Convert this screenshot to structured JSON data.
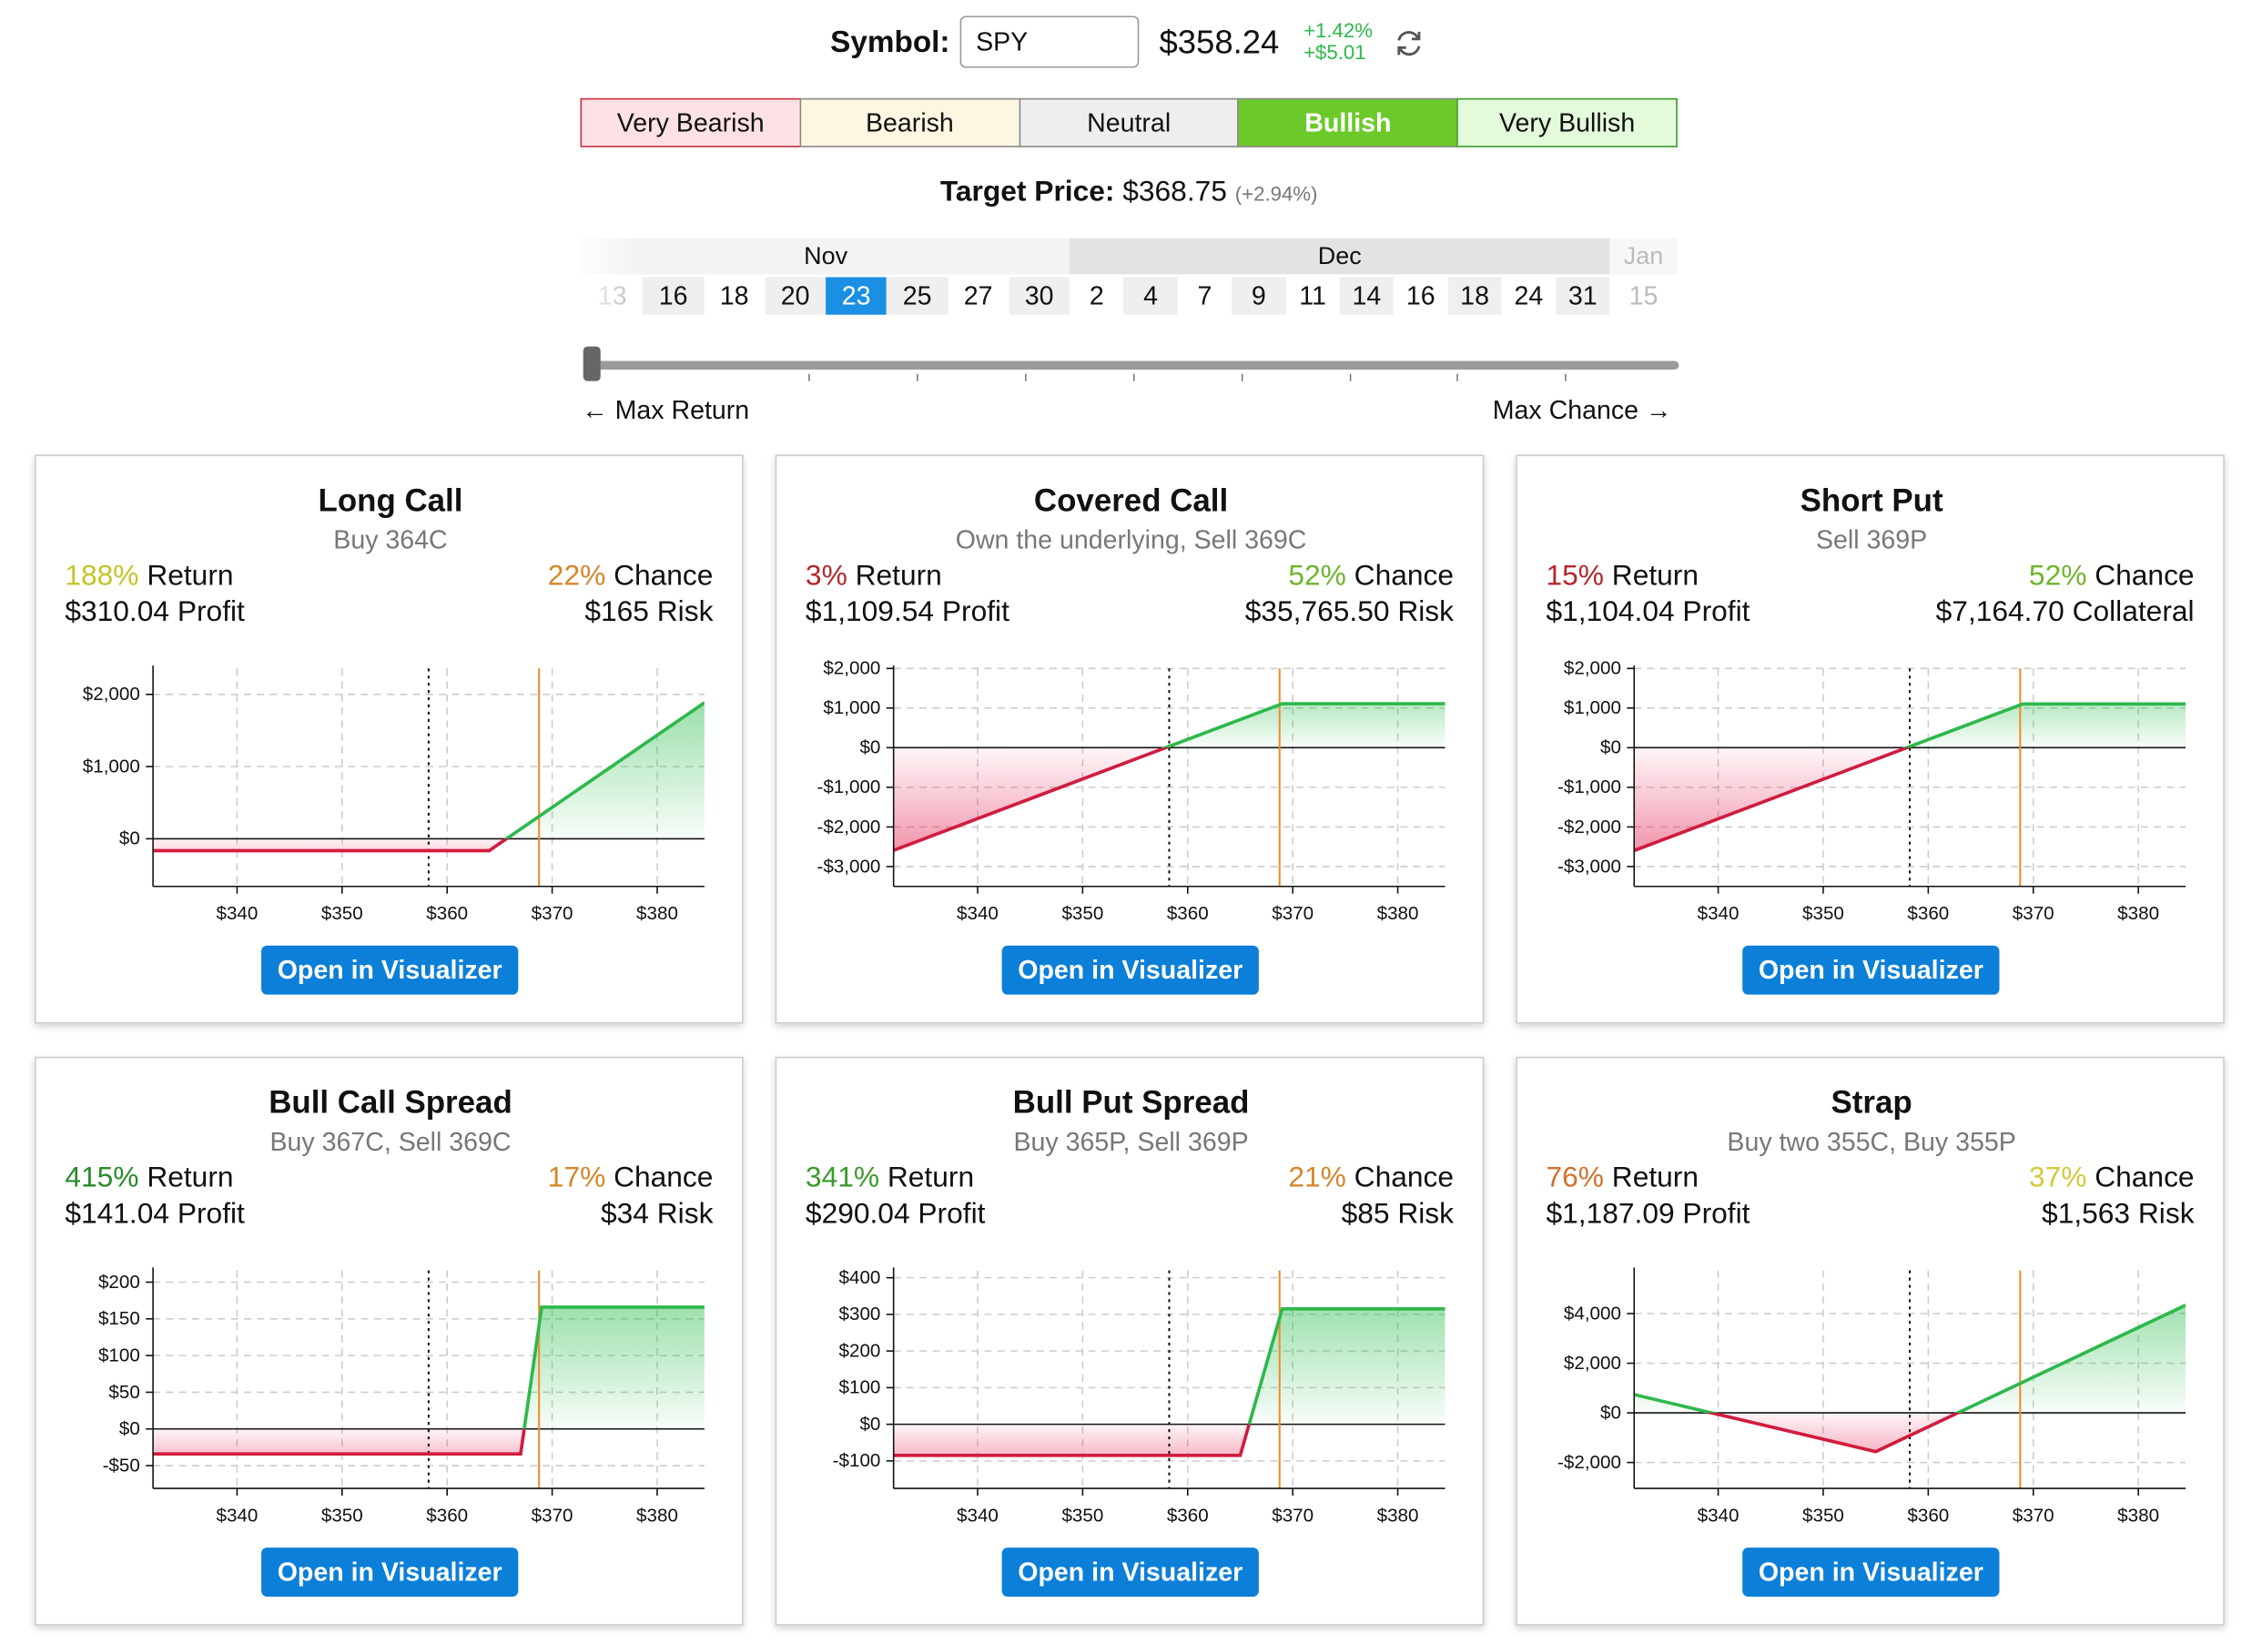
{
  "header": {
    "symbol_label": "Symbol:",
    "symbol": "SPY",
    "price": "$358.24",
    "change_pct": "+1.42%",
    "change_abs": "+$5.01"
  },
  "sentiments": [
    "Very Bearish",
    "Bearish",
    "Neutral",
    "Bullish",
    "Very Bullish"
  ],
  "target": {
    "label": "Target Price:",
    "value": "$368.75",
    "change": "(+2.94%)"
  },
  "dates": {
    "months": [
      {
        "name": "Nov",
        "days": [
          "13",
          "16",
          "18",
          "20",
          "23",
          "25",
          "27",
          "30"
        ]
      },
      {
        "name": "Dec",
        "days": [
          "2",
          "4",
          "7",
          "9",
          "11",
          "14",
          "16",
          "18",
          "24",
          "31"
        ]
      },
      {
        "name": "Jan",
        "days": [
          "15"
        ]
      }
    ]
  },
  "slider": {
    "left": "← Max Return",
    "right": "Max Chance →"
  },
  "cards": [
    {
      "title": "Long Call",
      "subtitle": "Buy 364C",
      "return_value": "188%",
      "return_label": "Return",
      "return_color": "#c4c428",
      "chance_value": "22%",
      "chance_label": "Chance",
      "chance_color": "#d4862a",
      "profit": "$310.04 Profit",
      "risk": "$165 Risk",
      "button": "Open in Visualizer",
      "chart": {
        "type": "line",
        "xlim": [
          332,
          384.5
        ],
        "ylim": [
          -660,
          2360
        ],
        "xticks": [
          {
            "value": 340,
            "label": "$340"
          },
          {
            "value": 350,
            "label": "$350"
          },
          {
            "value": 360,
            "label": "$360"
          },
          {
            "value": 370,
            "label": "$370"
          },
          {
            "value": 380,
            "label": "$380"
          }
        ],
        "yticks": [
          {
            "value": 0,
            "label": "$0"
          },
          {
            "value": 1000,
            "label": "$1,000"
          },
          {
            "value": 2000,
            "label": "$2,000"
          }
        ],
        "current": 358.24,
        "target": 368.75,
        "x": [
          332,
          364,
          384.5
        ],
        "values": [
          -165,
          -165,
          1885
        ]
      }
    },
    {
      "title": "Covered Call",
      "subtitle": "Own the underlying, Sell 369C",
      "return_value": "3%",
      "return_label": "Return",
      "return_color": "#b3262a",
      "chance_value": "52%",
      "chance_label": "Chance",
      "chance_color": "#6cb52c",
      "profit": "$1,109.54 Profit",
      "risk": "$35,765.50 Risk",
      "button": "Open in Visualizer",
      "chart": {
        "type": "line",
        "xlim": [
          332,
          384.5
        ],
        "ylim": [
          -3500,
          2000
        ],
        "xticks": [
          {
            "value": 340,
            "label": "$340"
          },
          {
            "value": 350,
            "label": "$350"
          },
          {
            "value": 360,
            "label": "$360"
          },
          {
            "value": 370,
            "label": "$370"
          },
          {
            "value": 380,
            "label": "$380"
          }
        ],
        "yticks": [
          {
            "value": -3000,
            "label": "-$3,000"
          },
          {
            "value": -2000,
            "label": "-$2,000"
          },
          {
            "value": -1000,
            "label": "-$1,000"
          },
          {
            "value": 0,
            "label": "$0"
          },
          {
            "value": 1000,
            "label": "$1,000"
          },
          {
            "value": 2000,
            "label": "$2,000"
          }
        ],
        "current": 358.24,
        "target": 368.75,
        "x": [
          332,
          369,
          384.5
        ],
        "values": [
          -2590,
          1109.54,
          1109.54
        ]
      }
    },
    {
      "title": "Short Put",
      "subtitle": "Sell 369P",
      "return_value": "15%",
      "return_label": "Return",
      "return_color": "#b3262a",
      "chance_value": "52%",
      "chance_label": "Chance",
      "chance_color": "#6cb52c",
      "profit": "$1,104.04 Profit",
      "risk": "$7,164.70 Collateral",
      "button": "Open in Visualizer",
      "chart": {
        "type": "line",
        "xlim": [
          332,
          384.5
        ],
        "ylim": [
          -3500,
          2000
        ],
        "xticks": [
          {
            "value": 340,
            "label": "$340"
          },
          {
            "value": 350,
            "label": "$350"
          },
          {
            "value": 360,
            "label": "$360"
          },
          {
            "value": 370,
            "label": "$370"
          },
          {
            "value": 380,
            "label": "$380"
          }
        ],
        "yticks": [
          {
            "value": -3000,
            "label": "-$3,000"
          },
          {
            "value": -2000,
            "label": "-$2,000"
          },
          {
            "value": -1000,
            "label": "-$1,000"
          },
          {
            "value": 0,
            "label": "$0"
          },
          {
            "value": 1000,
            "label": "$1,000"
          },
          {
            "value": 2000,
            "label": "$2,000"
          }
        ],
        "current": 358.24,
        "target": 368.75,
        "x": [
          332,
          369,
          384.5
        ],
        "values": [
          -2596,
          1104.04,
          1104.04
        ]
      }
    },
    {
      "title": "Bull Call Spread",
      "subtitle": "Buy 367C, Sell 369C",
      "return_value": "415%",
      "return_label": "Return",
      "return_color": "#2a8a2a",
      "chance_value": "17%",
      "chance_label": "Chance",
      "chance_color": "#d4862a",
      "profit": "$141.04 Profit",
      "risk": "$34 Risk",
      "button": "Open in Visualizer",
      "chart": {
        "type": "line",
        "xlim": [
          332,
          384.5
        ],
        "ylim": [
          -81,
          216
        ],
        "xticks": [
          {
            "value": 340,
            "label": "$340"
          },
          {
            "value": 350,
            "label": "$350"
          },
          {
            "value": 360,
            "label": "$360"
          },
          {
            "value": 370,
            "label": "$370"
          },
          {
            "value": 380,
            "label": "$380"
          }
        ],
        "yticks": [
          {
            "value": -50,
            "label": "-$50"
          },
          {
            "value": 0,
            "label": "$0"
          },
          {
            "value": 50,
            "label": "$50"
          },
          {
            "value": 100,
            "label": "$100"
          },
          {
            "value": 150,
            "label": "$150"
          },
          {
            "value": 200,
            "label": "$200"
          }
        ],
        "current": 358.24,
        "target": 368.75,
        "x": [
          332,
          367,
          369,
          384.5
        ],
        "values": [
          -34,
          -34,
          166,
          166
        ]
      }
    },
    {
      "title": "Bull Put Spread",
      "subtitle": "Buy 365P, Sell 369P",
      "return_value": "341%",
      "return_label": "Return",
      "return_color": "#3a9a2a",
      "chance_value": "21%",
      "chance_label": "Chance",
      "chance_color": "#d4862a",
      "profit": "$290.04 Profit",
      "risk": "$85 Risk",
      "button": "Open in Visualizer",
      "chart": {
        "type": "line",
        "xlim": [
          332,
          384.5
        ],
        "ylim": [
          -175,
          420
        ],
        "xticks": [
          {
            "value": 340,
            "label": "$340"
          },
          {
            "value": 350,
            "label": "$350"
          },
          {
            "value": 360,
            "label": "$360"
          },
          {
            "value": 370,
            "label": "$370"
          },
          {
            "value": 380,
            "label": "$380"
          }
        ],
        "yticks": [
          {
            "value": -100,
            "label": "-$100"
          },
          {
            "value": 0,
            "label": "$0"
          },
          {
            "value": 100,
            "label": "$100"
          },
          {
            "value": 200,
            "label": "$200"
          },
          {
            "value": 300,
            "label": "$300"
          },
          {
            "value": 400,
            "label": "$400"
          }
        ],
        "current": 358.24,
        "target": 368.75,
        "x": [
          332,
          365,
          369,
          384.5
        ],
        "values": [
          -85,
          -85,
          315,
          315
        ]
      }
    },
    {
      "title": "Strap",
      "subtitle": "Buy two 355C, Buy 355P",
      "return_value": "76%",
      "return_label": "Return",
      "return_color": "#d4702a",
      "chance_value": "37%",
      "chance_label": "Chance",
      "chance_color": "#d4c83a",
      "profit": "$1,187.09 Profit",
      "risk": "$1,563 Risk",
      "button": "Open in Visualizer",
      "chart": {
        "type": "line",
        "xlim": [
          332,
          384.5
        ],
        "ylim": [
          -3043,
          5739
        ],
        "xticks": [
          {
            "value": 340,
            "label": "$340"
          },
          {
            "value": 350,
            "label": "$350"
          },
          {
            "value": 360,
            "label": "$360"
          },
          {
            "value": 370,
            "label": "$370"
          },
          {
            "value": 380,
            "label": "$380"
          }
        ],
        "yticks": [
          {
            "value": -2000,
            "label": "-$2,000"
          },
          {
            "value": 0,
            "label": "$0"
          },
          {
            "value": 2000,
            "label": "$2,000"
          },
          {
            "value": 4000,
            "label": "$4,000"
          }
        ],
        "current": 358.24,
        "target": 368.75,
        "x": [
          332,
          355,
          384.5
        ],
        "values": [
          737,
          -1563,
          4337
        ]
      }
    }
  ]
}
